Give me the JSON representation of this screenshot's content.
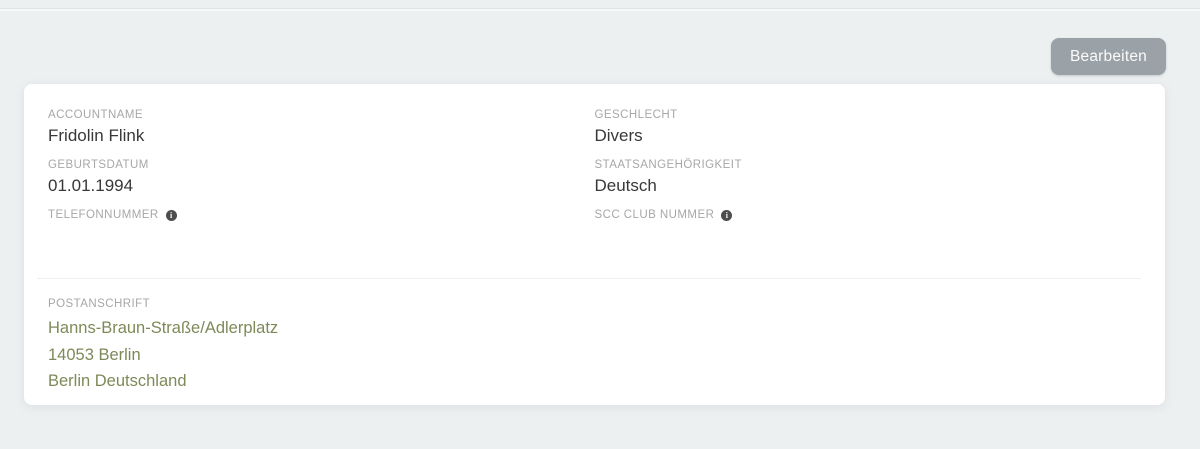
{
  "toolbar": {
    "edit_button_label": "Bearbeiten"
  },
  "profile": {
    "columns": [
      {
        "fields": [
          {
            "label": "ACCOUNTNAME",
            "value": "Fridolin Flink"
          },
          {
            "label": "GEBURTSDATUM",
            "value": "01.01.1994"
          },
          {
            "label": "TELEFONNUMMER",
            "icon": "info-icon"
          }
        ]
      },
      {
        "fields": [
          {
            "label": "GESCHLECHT",
            "value": "Divers"
          },
          {
            "label": "STAATSANGEHÖRIGKEIT",
            "value": "Deutsch"
          },
          {
            "label": "SCC CLUB NUMMER",
            "icon": "info-icon"
          }
        ]
      }
    ],
    "address": {
      "label": "POSTANSCHRIFT",
      "lines": [
        "Hanns-Braun-Straße/Adlerplatz",
        "14053 Berlin",
        "Berlin Deutschland"
      ]
    }
  },
  "colors": {
    "page_background": "#edf0f1",
    "card_background": "#ffffff",
    "label_text": "#a7a7a7",
    "value_text": "#383837",
    "address_text": "#7d8a58",
    "button_background": "#9aa1a7",
    "button_text": "#fafafa"
  }
}
